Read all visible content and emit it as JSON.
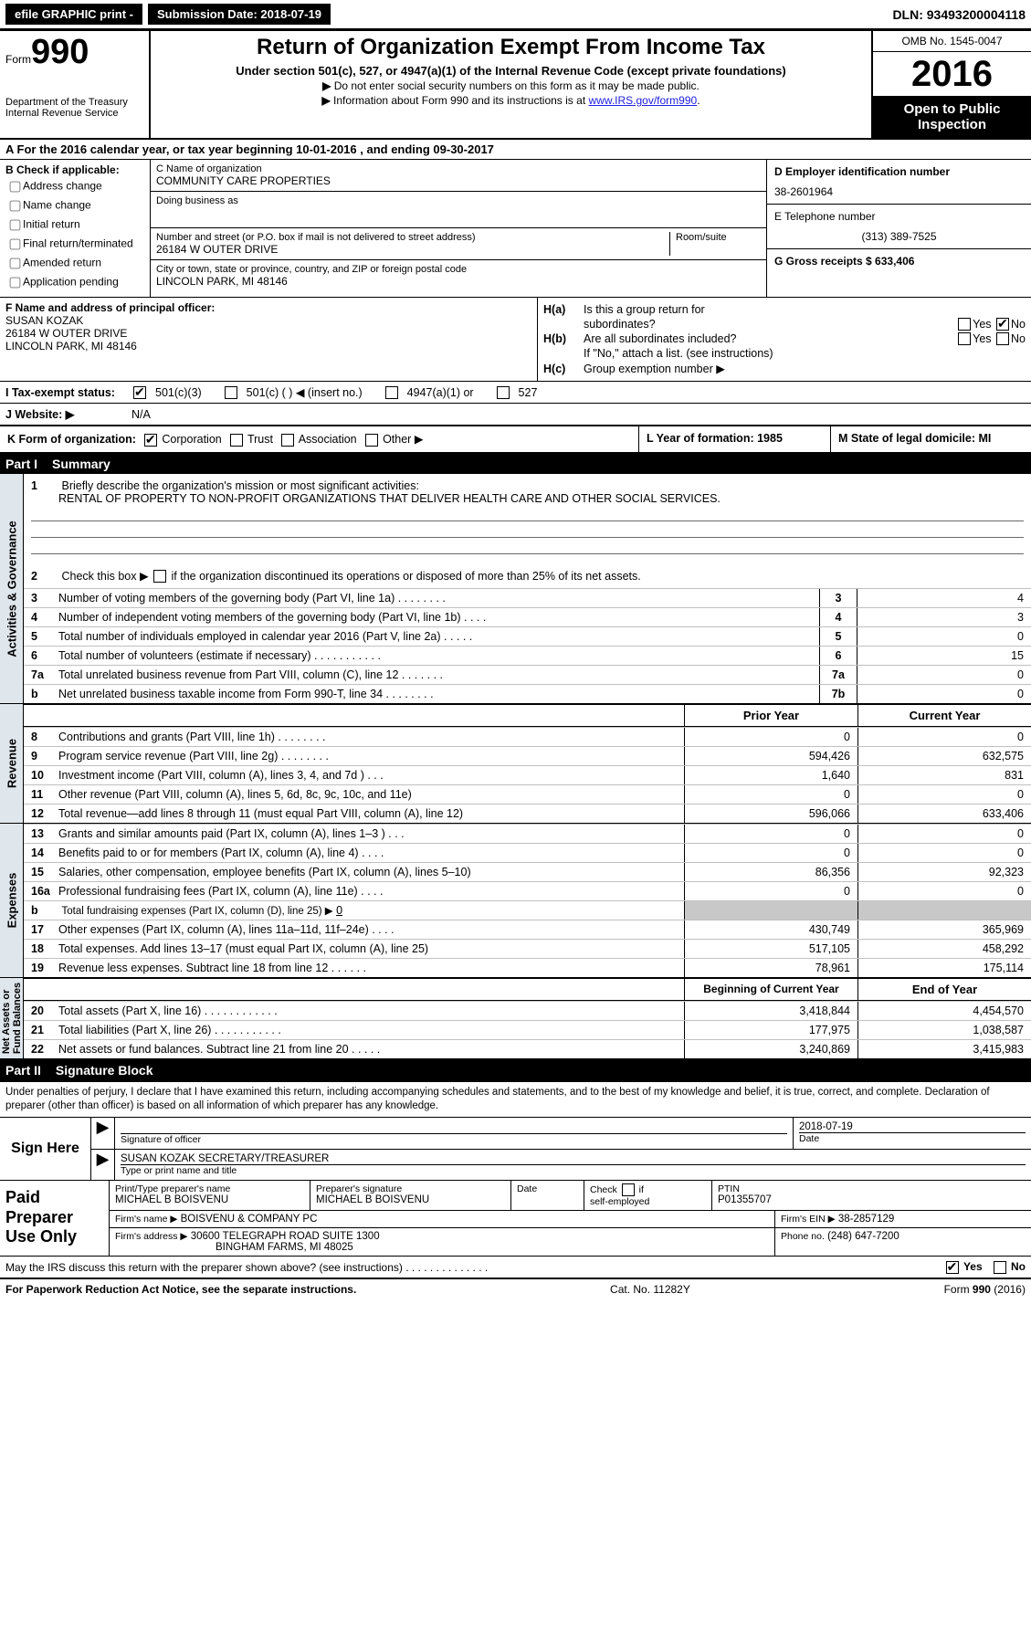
{
  "topbar": {
    "efile": "efile GRAPHIC print -",
    "submission_label": "Submission Date: 2018-07-19",
    "dln": "DLN: 93493200004118"
  },
  "header": {
    "form_prefix": "Form",
    "form_number": "990",
    "dept_line1": "Department of the Treasury",
    "dept_line2": "Internal Revenue Service",
    "title": "Return of Organization Exempt From Income Tax",
    "sub1": "Under section 501(c), 527, or 4947(a)(1) of the Internal Revenue Code (except private foundations)",
    "note1": "Do not enter social security numbers on this form as it may be made public.",
    "note2_pre": "Information about Form 990 and its instructions is at ",
    "note2_link": "www.IRS.gov/form990",
    "omb": "OMB No. 1545-0047",
    "year": "2016",
    "open1": "Open to Public",
    "open2": "Inspection"
  },
  "section_a": "A   For the 2016 calendar year, or tax year beginning 10-01-2016    , and ending 09-30-2017",
  "B": {
    "header": "B Check if applicable:",
    "opts": [
      "Address change",
      "Name change",
      "Initial return",
      "Final return/terminated",
      "Amended return",
      "Application pending"
    ]
  },
  "C": {
    "name_label": "C Name of organization",
    "name": "COMMUNITY CARE PROPERTIES",
    "dba_label": "Doing business as",
    "addr_label": "Number and street (or P.O. box if mail is not delivered to street address)",
    "room_label": "Room/suite",
    "addr": "26184 W OUTER DRIVE",
    "city_label": "City or town, state or province, country, and ZIP or foreign postal code",
    "city": "LINCOLN PARK, MI  48146"
  },
  "D": {
    "label": "D Employer identification number",
    "ein": "38-2601964",
    "tel_label": "E Telephone number",
    "tel": "(313) 389-7525",
    "gross_label": "G Gross receipts $ 633,406"
  },
  "F": {
    "label": "F  Name and address of principal officer:",
    "l1": "SUSAN KOZAK",
    "l2": "26184 W OUTER DRIVE",
    "l3": "LINCOLN PARK, MI  48146"
  },
  "H": {
    "a_text": "Is this a group return for",
    "a_text2": "subordinates?",
    "b_text": "Are all subordinates included?",
    "b_note": "If \"No,\" attach a list. (see instructions)",
    "c_text": "Group exemption number ▶",
    "yes": "Yes",
    "no": "No"
  },
  "I": {
    "label": "I  Tax-exempt status:",
    "o1": "501(c)(3)",
    "o2": "501(c) (    ) ◀ (insert no.)",
    "o3": "4947(a)(1) or",
    "o4": "527"
  },
  "J": {
    "label": "J  Website: ▶",
    "val": "N/A"
  },
  "K": {
    "label": "K Form of organization:",
    "o1": "Corporation",
    "o2": "Trust",
    "o3": "Association",
    "o4": "Other ▶"
  },
  "L": {
    "text": "L Year of formation: 1985"
  },
  "M": {
    "text": "M State of legal domicile: MI"
  },
  "parts": {
    "p1": "Part I",
    "p1t": "Summary",
    "p2": "Part II",
    "p2t": "Signature Block"
  },
  "vlabels": {
    "gov": "Activities & Governance",
    "rev": "Revenue",
    "exp": "Expenses",
    "net": "Net Assets or\nFund Balances"
  },
  "brief": {
    "n": "1",
    "text": "Briefly describe the organization's mission or most significant activities:",
    "val": "RENTAL OF PROPERTY TO NON-PROFIT ORGANIZATIONS THAT DELIVER HEALTH CARE AND OTHER SOCIAL SERVICES."
  },
  "line2": {
    "n": "2",
    "text": "Check this box ▶",
    "text2": " if the organization discontinued its operations or disposed of more than 25% of its net assets."
  },
  "gov_lines": [
    {
      "n": "3",
      "desc": "Number of voting members of the governing body (Part VI, line 1a)   .     .     .     .     .     .     .     .",
      "num": "3",
      "val": "4"
    },
    {
      "n": "4",
      "desc": "Number of independent voting members of the governing body (Part VI, line 1b)    .     .     .     .",
      "num": "4",
      "val": "3"
    },
    {
      "n": "5",
      "desc": "Total number of individuals employed in calendar year 2016 (Part V, line 2a)    .     .     .     .     .",
      "num": "5",
      "val": "0"
    },
    {
      "n": "6",
      "desc": "Total number of volunteers (estimate if necessary)    .     .     .     .     .     .     .     .     .     .     .",
      "num": "6",
      "val": "15"
    },
    {
      "n": "7a",
      "desc": "Total unrelated business revenue from Part VIII, column (C), line 12    .     .     .     .     .     .     .",
      "num": "7a",
      "val": "0"
    },
    {
      "n": "  b",
      "desc": "Net unrelated business taxable income from Form 990-T, line 34   .     .     .     .     .     .     .     .",
      "num": "7b",
      "val": "0"
    }
  ],
  "yr_hdr": {
    "py": "Prior Year",
    "cy": "Current Year"
  },
  "rev_lines": [
    {
      "n": "8",
      "desc": "Contributions and grants (Part VIII, line 1h)    .     .     .     .     .     .     .     .",
      "py": "0",
      "cy": "0"
    },
    {
      "n": "9",
      "desc": "Program service revenue (Part VIII, line 2g)    .     .     .     .     .     .     .     .",
      "py": "594,426",
      "cy": "632,575"
    },
    {
      "n": "10",
      "desc": "Investment income (Part VIII, column (A), lines 3, 4, and 7d )    .     .     .",
      "py": "1,640",
      "cy": "831"
    },
    {
      "n": "11",
      "desc": "Other revenue (Part VIII, column (A), lines 5, 6d, 8c, 9c, 10c, and 11e)",
      "py": "0",
      "cy": "0"
    },
    {
      "n": "12",
      "desc": "Total revenue—add lines 8 through 11 (must equal Part VIII, column (A), line 12)",
      "py": "596,066",
      "cy": "633,406"
    }
  ],
  "exp_lines": [
    {
      "n": "13",
      "desc": "Grants and similar amounts paid (Part IX, column (A), lines 1–3 )   .     .     .",
      "py": "0",
      "cy": "0"
    },
    {
      "n": "14",
      "desc": "Benefits paid to or for members (Part IX, column (A), line 4)   .     .     .     .",
      "py": "0",
      "cy": "0"
    },
    {
      "n": "15",
      "desc": "Salaries, other compensation, employee benefits (Part IX, column (A), lines 5–10)",
      "py": "86,356",
      "cy": "92,323"
    },
    {
      "n": "16a",
      "desc": "Professional fundraising fees (Part IX, column (A), line 11e)    .     .     .     .",
      "py": "0",
      "cy": "0"
    }
  ],
  "line16b": {
    "n": "  b",
    "desc_pre": "Total fundraising expenses (Part IX, column (D), line 25) ▶",
    "desc_val": "0"
  },
  "exp_lines2": [
    {
      "n": "17",
      "desc": "Other expenses (Part IX, column (A), lines 11a–11d, 11f–24e)    .     .     .     .",
      "py": "430,749",
      "cy": "365,969"
    },
    {
      "n": "18",
      "desc": "Total expenses. Add lines 13–17 (must equal Part IX, column (A), line 25)",
      "py": "517,105",
      "cy": "458,292"
    },
    {
      "n": "19",
      "desc": "Revenue less expenses. Subtract line 18 from line 12  .     .     .     .     .     .",
      "py": "78,961",
      "cy": "175,114"
    }
  ],
  "net_hdr": {
    "b": "Beginning of Current Year",
    "e": "End of Year"
  },
  "net_lines": [
    {
      "n": "20",
      "desc": "Total assets (Part X, line 16)   .     .     .     .     .     .     .     .     .     .     .     .",
      "b": "3,418,844",
      "e": "4,454,570"
    },
    {
      "n": "21",
      "desc": "Total liabilities (Part X, line 26)   .     .     .     .     .     .     .     .     .     .     .",
      "b": "177,975",
      "e": "1,038,587"
    },
    {
      "n": "22",
      "desc": "Net assets or fund balances. Subtract line 21 from line 20 .     .     .     .     .",
      "b": "3,240,869",
      "e": "3,415,983"
    }
  ],
  "perjury": "Under penalties of perjury, I declare that I have examined this return, including accompanying schedules and statements, and to the best of my knowledge and belief, it is true, correct, and complete. Declaration of preparer (other than officer) is based on all information of which preparer has any knowledge.",
  "sign": {
    "here": "Sign Here",
    "sig_officer": "Signature of officer",
    "date_label": "Date",
    "date": "2018-07-19",
    "name_title": "SUSAN KOZAK  SECRETARY/TREASURER",
    "type_name": "Type or print name and title"
  },
  "paid": {
    "label": "Paid Preparer Use Only",
    "print_label": "Print/Type preparer's name",
    "print_val": "MICHAEL B BOISVENU",
    "sig_label": "Preparer's signature",
    "sig_val": "MICHAEL B BOISVENU",
    "date_label": "Date",
    "check_self": "Check         if self-employed",
    "ptin_label": "PTIN",
    "ptin": "P01355707",
    "firm_name_label": "Firm's name      ▶",
    "firm_name": "BOISVENU & COMPANY PC",
    "firm_ein_label": "Firm's EIN ▶",
    "firm_ein": "38-2857129",
    "firm_addr_label": "Firm's address  ▶",
    "firm_addr1": "30600 TELEGRAPH ROAD SUITE 1300",
    "firm_addr2": "BINGHAM FARMS, MI  48025",
    "phone_label": "Phone no.",
    "phone": "(248) 647-7200"
  },
  "discuss": {
    "text": "May the IRS discuss this return with the preparer shown above? (see instructions)   .     .     .     .     .     .     .     .     .     .     .     .     .     .",
    "yes": "Yes",
    "no": "No"
  },
  "footer": {
    "pra": "For Paperwork Reduction Act Notice, see the separate instructions.",
    "cat": "Cat. No. 11282Y",
    "form": "Form 990 (2016)"
  }
}
